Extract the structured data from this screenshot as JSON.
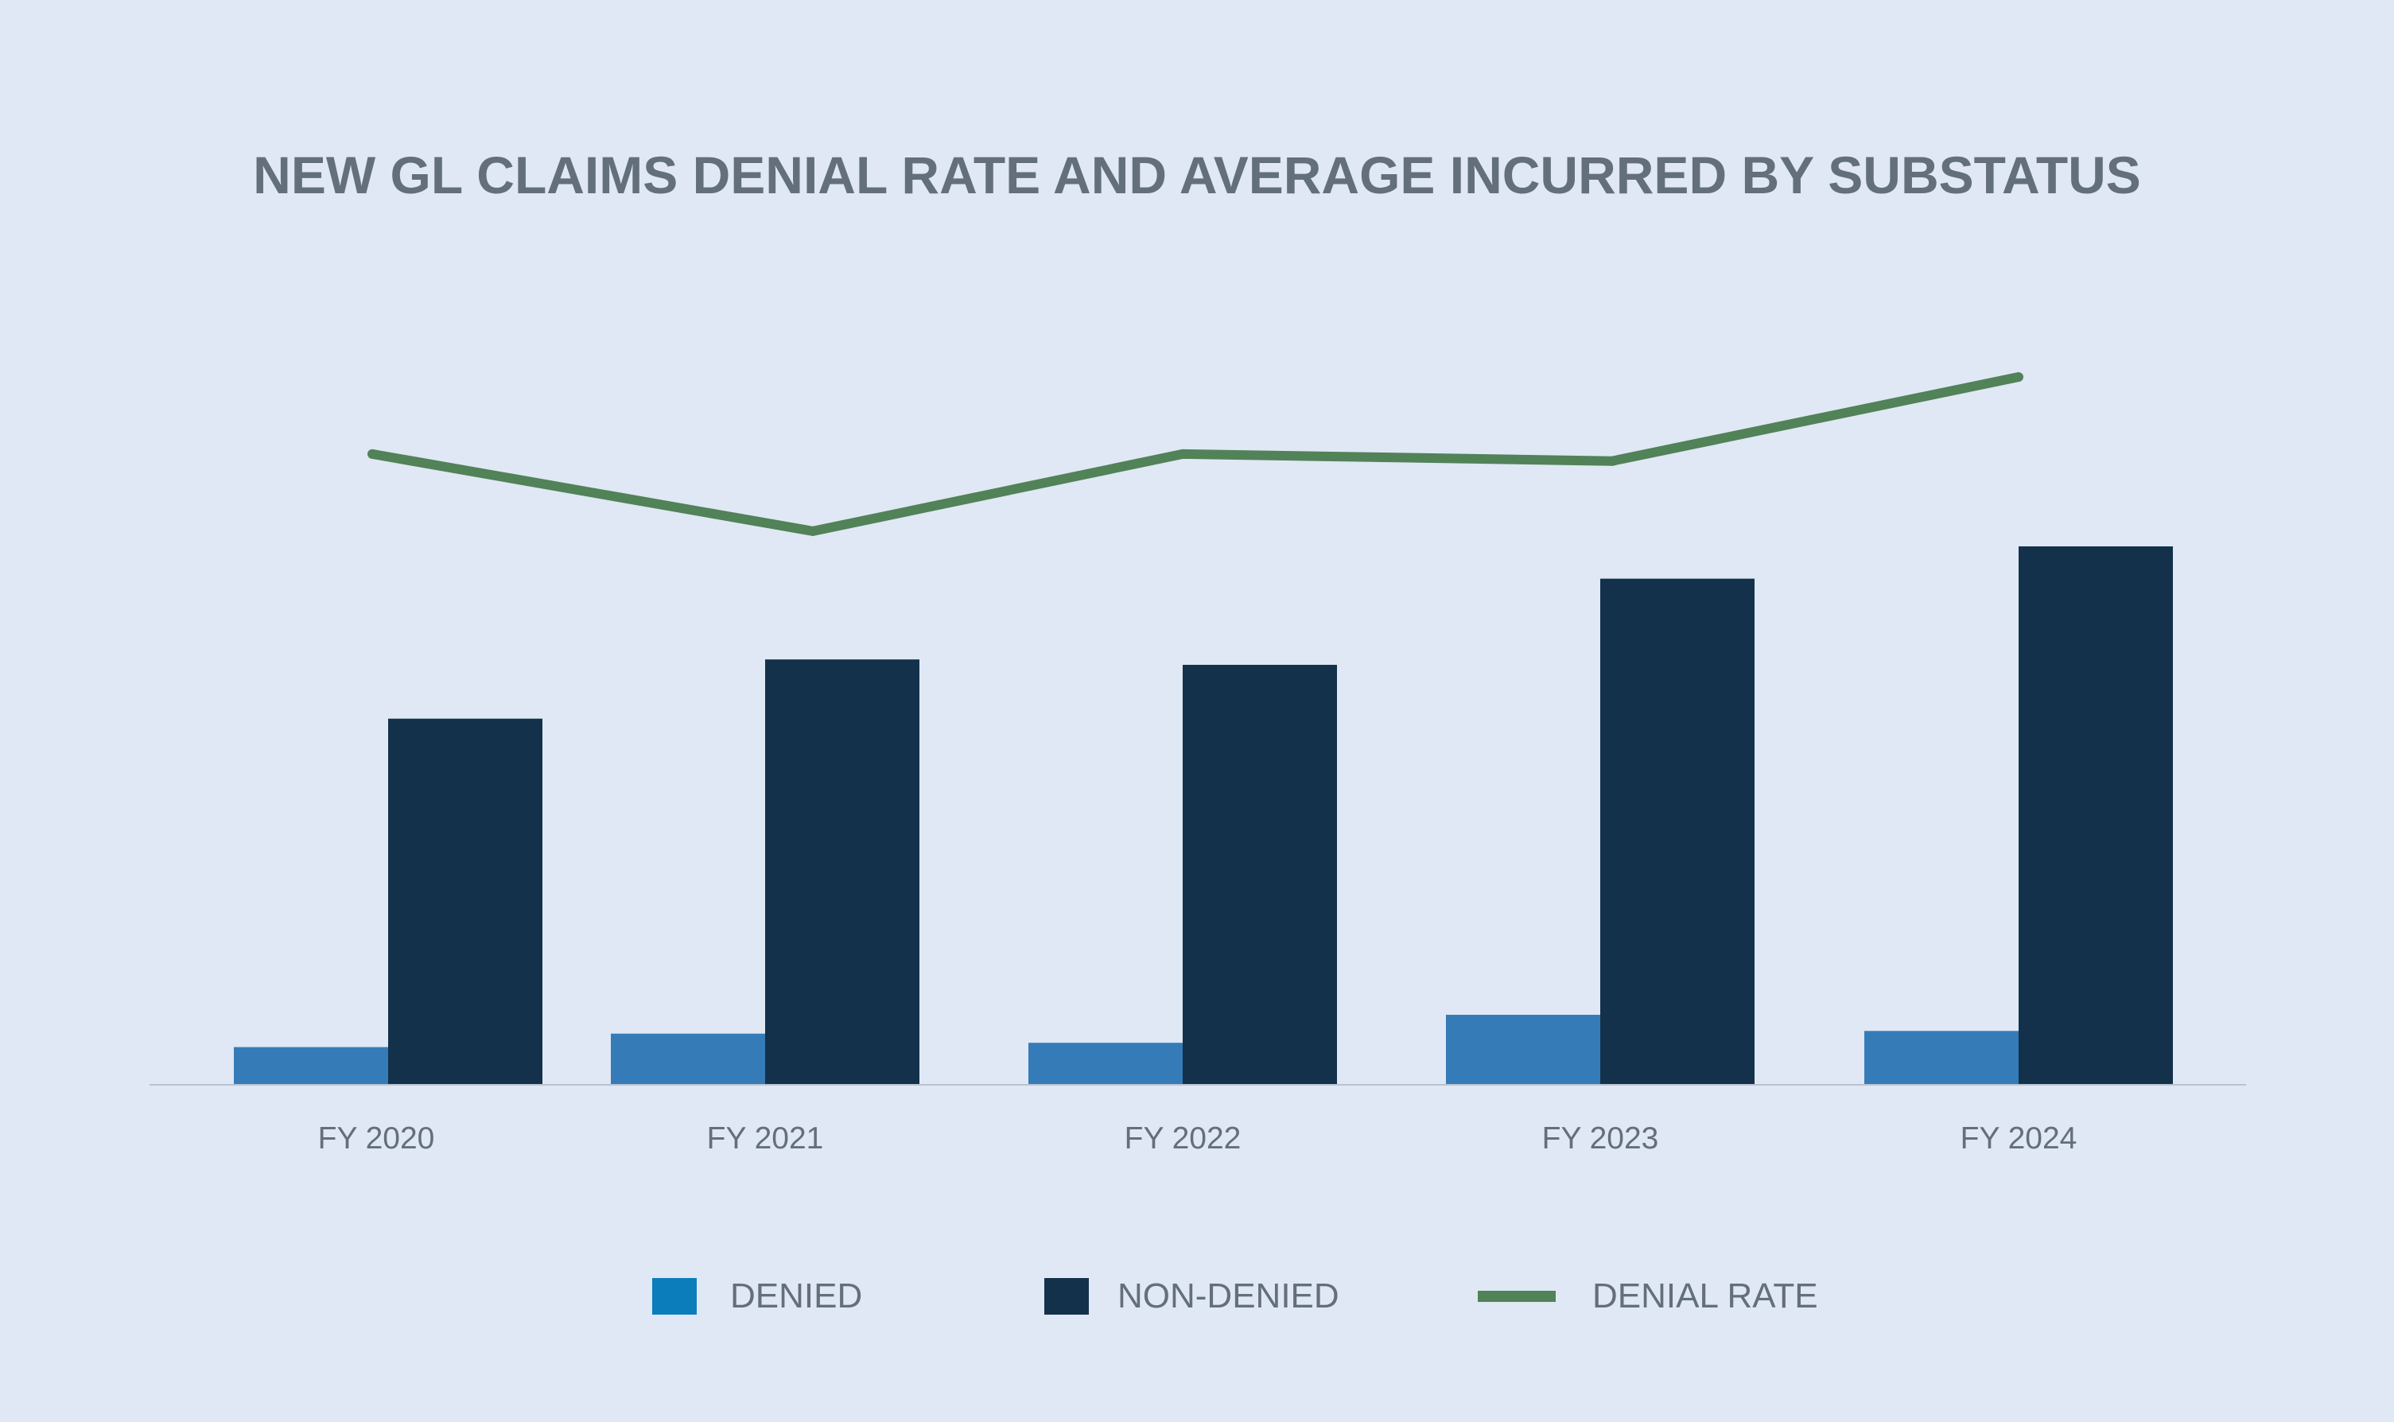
{
  "chart_data": {
    "type": "bar",
    "title": "NEW GL CLAIMS DENIAL RATE AND AVERAGE INCURRED BY SUBSTATUS",
    "categories": [
      "FY 2020",
      "FY 2021",
      "FY 2022",
      "FY 2023",
      "FY 2024"
    ],
    "series": [
      {
        "name": "DENIED",
        "kind": "bar",
        "color": "#357bb8",
        "legend_color": "#0b7dbb",
        "values": [
          7,
          9.5,
          7.8,
          13,
          10
        ]
      },
      {
        "name": "NON-DENIED",
        "kind": "bar",
        "color": "#13314b",
        "legend_color": "#13314b",
        "values": [
          68,
          79,
          78,
          94,
          100
        ]
      },
      {
        "name": "DENIAL RATE",
        "kind": "line",
        "color": "#528258",
        "values": [
          90,
          79,
          90,
          89,
          101
        ]
      }
    ],
    "bar_axis_max": 100,
    "line_axis_range": [
      0,
      101
    ],
    "grid": false,
    "legend_position": "bottom",
    "y_axis_labels_shown": false
  }
}
